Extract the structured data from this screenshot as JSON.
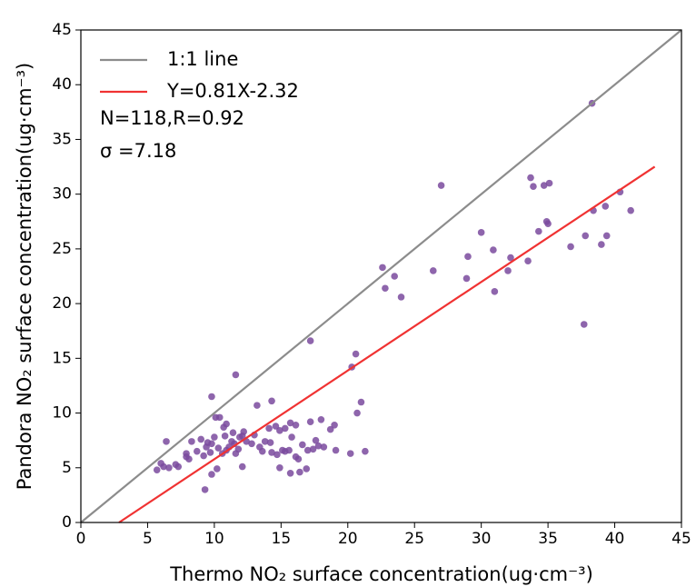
{
  "chart_data": {
    "type": "scatter",
    "xlabel": "Thermo NO₂ surface concentration(ug·cm⁻³)",
    "ylabel": "Pandora NO₂ surface concentration(ug·cm⁻³)",
    "xlim": [
      0,
      45
    ],
    "ylim": [
      0,
      45
    ],
    "xticks": [
      0,
      5,
      10,
      15,
      20,
      25,
      30,
      35,
      40,
      45
    ],
    "yticks": [
      0,
      5,
      10,
      15,
      20,
      25,
      30,
      35,
      40,
      45
    ],
    "legend": "upper left",
    "annotations": [
      "N=118,R=0.92",
      "σ =7.18"
    ],
    "series": [
      {
        "mode": "scatter",
        "color": "#7a4a9e",
        "x": [
          38.3,
          27,
          33.7,
          33.9,
          34.7,
          35.1,
          40.4,
          34.9,
          35,
          30,
          34.3,
          36.7,
          37.8,
          38.4,
          39.3,
          41.2,
          39.4,
          39,
          26.4,
          29,
          30.9,
          32.2,
          32,
          33.5,
          28.9,
          31,
          37.7,
          22.6,
          23.5,
          22.8,
          24,
          17.2,
          20.6,
          20.3,
          11.6,
          9.8,
          14.3,
          13.2,
          21,
          20.7,
          10.1,
          10.4,
          15.7,
          16.1,
          17.2,
          18,
          18.7,
          19,
          14.6,
          14.1,
          14.9,
          10.9,
          10.7,
          11.4,
          12.2,
          12.1,
          15.3,
          15.8,
          17.6,
          17.8,
          17.4,
          17,
          19.1,
          20.2,
          21.3,
          6.4,
          7.9,
          8.3,
          9,
          9.4,
          9.8,
          9.2,
          9.7,
          10.3,
          10.6,
          10.9,
          11.1,
          11.3,
          11.5,
          11.8,
          12.4,
          13.4,
          13.8,
          14.3,
          14.7,
          15.3,
          15.6,
          16.1,
          12.1,
          10.2,
          9.8,
          9.3,
          5.7,
          6,
          6.2,
          6.6,
          7.1,
          7.3,
          8.1,
          14.9,
          15.7,
          16.4,
          16.9,
          13,
          16.6,
          12.8,
          10,
          18.2,
          8.7,
          11.6,
          10.8,
          13.6,
          16.3,
          9.5,
          7.9,
          15.1,
          14.2,
          11.9
        ],
        "values": [
          38.3,
          30.8,
          31.5,
          30.7,
          30.8,
          31,
          30.2,
          27.5,
          27.3,
          26.5,
          26.6,
          25.2,
          26.2,
          28.5,
          28.9,
          28.5,
          26.2,
          25.4,
          23,
          24.3,
          24.9,
          24.2,
          23,
          23.9,
          22.3,
          21.1,
          18.1,
          23.3,
          22.5,
          21.4,
          20.6,
          16.6,
          15.4,
          14.2,
          13.5,
          11.5,
          11.1,
          10.7,
          11,
          10,
          9.6,
          9.6,
          9.1,
          8.9,
          9.2,
          9.4,
          8.5,
          8.9,
          8.8,
          8.6,
          8.4,
          9,
          8.7,
          8.2,
          8.3,
          7.9,
          8.6,
          7.8,
          7.5,
          7,
          6.7,
          6.6,
          6.6,
          6.3,
          6.5,
          7.4,
          6.3,
          7.4,
          7.6,
          6.9,
          7.2,
          6.1,
          6.4,
          6.8,
          6.3,
          6.6,
          6.9,
          7.4,
          7.2,
          6.7,
          7.4,
          6.9,
          7.4,
          6.4,
          6.2,
          6.5,
          6.6,
          6,
          5.1,
          4.9,
          4.4,
          3,
          4.8,
          5.4,
          5.1,
          5,
          5.3,
          5.1,
          5.8,
          5,
          4.5,
          4.6,
          4.9,
          8,
          7.1,
          7.2,
          7.8,
          6.9,
          6.5,
          6.3,
          7.9,
          6.5,
          5.8,
          7.3,
          6,
          6.6,
          7.3,
          7.8
        ]
      },
      {
        "mode": "line",
        "name": "1:1 line",
        "color": "#8c8c8c",
        "x": [
          0,
          45
        ],
        "values": [
          0,
          45
        ]
      },
      {
        "mode": "line",
        "name": "Y=0.81X-2.32",
        "color": "#f03232",
        "x": [
          2.86,
          43
        ],
        "values": [
          0,
          32.51
        ]
      }
    ]
  }
}
